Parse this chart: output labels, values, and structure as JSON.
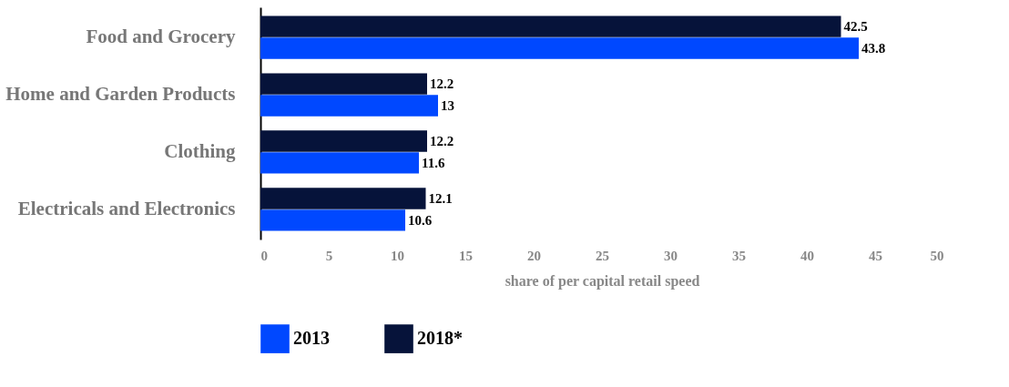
{
  "chart_data": {
    "type": "bar",
    "orientation": "horizontal",
    "categories": [
      "Food and Grocery",
      "Home and Garden Products",
      "Clothing",
      "Electricals and Electronics"
    ],
    "series": [
      {
        "name": "2018*",
        "color": "#06133a",
        "values": [
          42.5,
          12.2,
          12.2,
          12.1
        ]
      },
      {
        "name": "2013",
        "color": "#0048ff",
        "values": [
          43.8,
          13,
          11.6,
          10.6
        ]
      }
    ],
    "xlabel": "share of per  capital retail speed",
    "xlim": [
      0,
      50
    ],
    "xticks": [
      0,
      5,
      10,
      15,
      20,
      25,
      30,
      35,
      40,
      45,
      50
    ],
    "data_labels": true,
    "grid": false,
    "legend": "bottom"
  }
}
